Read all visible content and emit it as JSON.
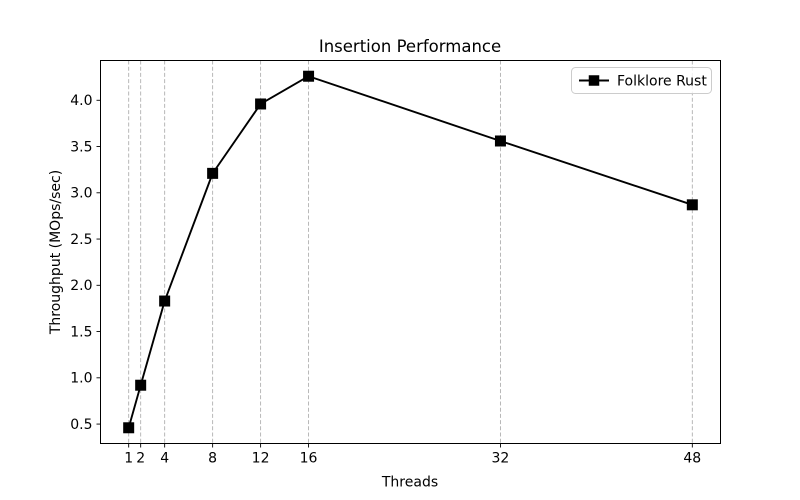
{
  "chart_data": {
    "type": "line",
    "title": "Insertion Performance",
    "xlabel": "Threads",
    "ylabel": "Throughput (MOps/sec)",
    "x": [
      1,
      2,
      4,
      8,
      12,
      16,
      32,
      48
    ],
    "series": [
      {
        "name": "Folklore Rust",
        "color": "#000000",
        "marker": "square",
        "values": [
          0.46,
          0.92,
          1.83,
          3.21,
          3.96,
          4.26,
          3.56,
          2.87
        ]
      }
    ],
    "xticks": [
      1,
      2,
      4,
      8,
      12,
      16,
      32,
      48
    ],
    "yticks": [
      0.5,
      1.0,
      1.5,
      2.0,
      2.5,
      3.0,
      3.5,
      4.0
    ],
    "xlim": [
      -1.35,
      50.35
    ],
    "ylim": [
      0.29,
      4.43
    ],
    "grid": {
      "vertical": true,
      "horizontal": false,
      "style": "dashed",
      "color": "#b0b0b0"
    },
    "legend": {
      "position": "upper-right",
      "entries": [
        "Folklore Rust"
      ]
    },
    "background": "#ffffff"
  }
}
